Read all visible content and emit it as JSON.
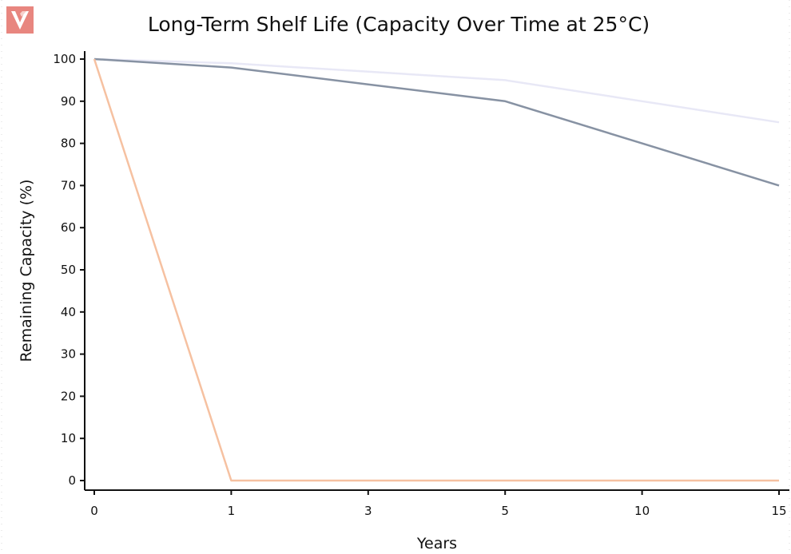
{
  "logo": {
    "icon": "v-brand-logo",
    "color": "#e8867f"
  },
  "chart_data": {
    "type": "line",
    "title": "Long-Term Shelf Life (Capacity Over Time at 25°C)",
    "xlabel": "Years",
    "ylabel": "Remaining Capacity (%)",
    "categories": [
      "0",
      "1",
      "3",
      "5",
      "10",
      "15"
    ],
    "ylim": [
      0,
      100
    ],
    "yticks": [
      0,
      10,
      20,
      30,
      40,
      50,
      60,
      70,
      80,
      90,
      100
    ],
    "grid": false,
    "legend": "none",
    "series": [
      {
        "values": [
          100,
          99,
          97,
          95,
          90,
          85
        ],
        "color": "#e8e8f6"
      },
      {
        "values": [
          100,
          98,
          94,
          90,
          80,
          70
        ],
        "color": "#8792a3"
      },
      {
        "values": [
          100,
          0,
          0,
          0,
          0,
          0
        ],
        "color": "#f6c1a1"
      }
    ]
  }
}
